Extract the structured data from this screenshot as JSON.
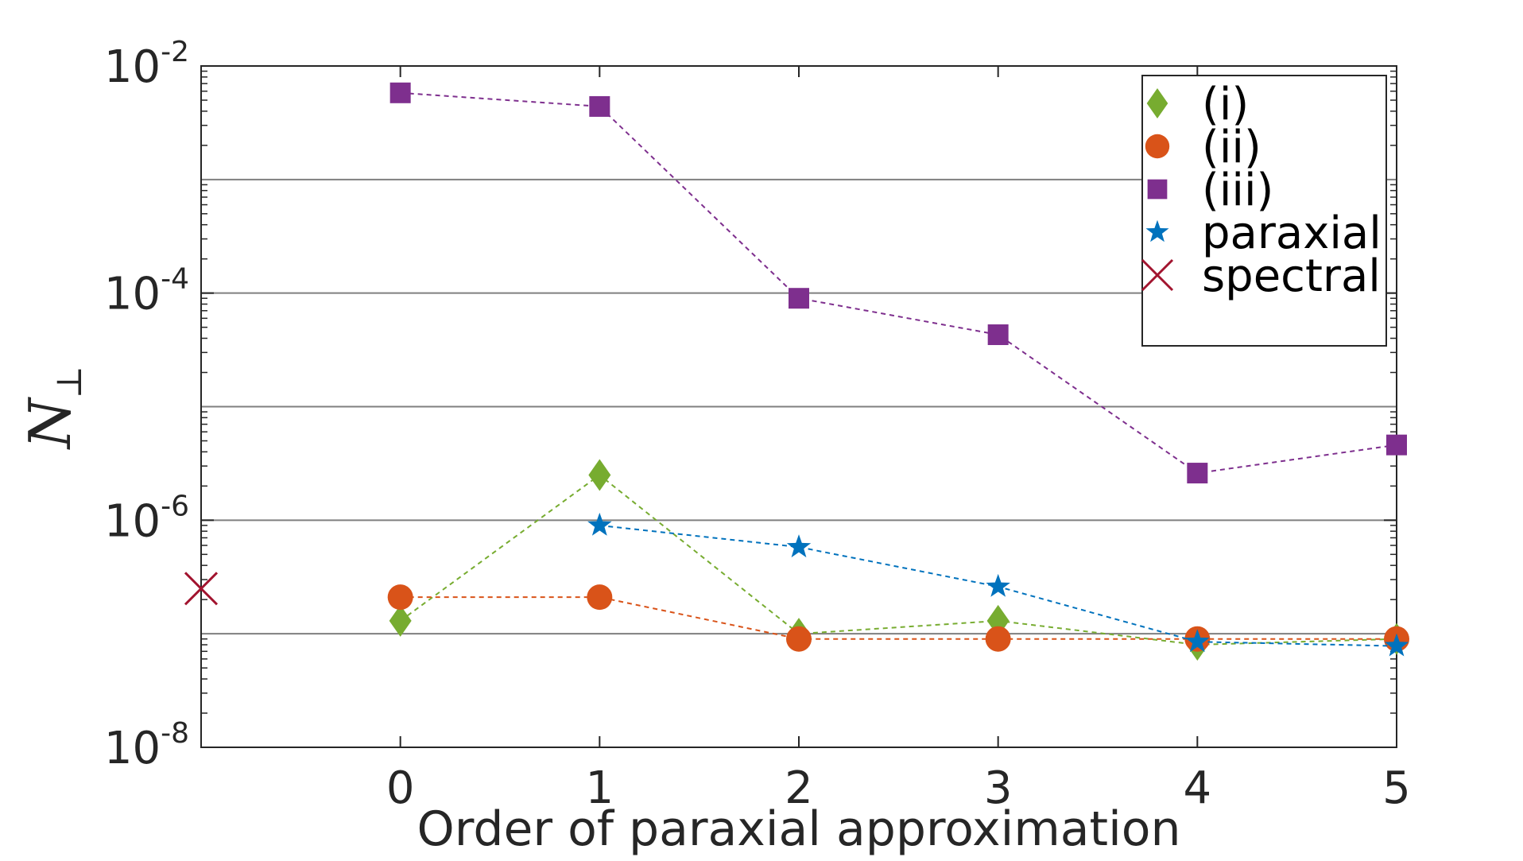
{
  "chart_data": {
    "type": "line",
    "xlabel": "Order of paraxial approximation",
    "ylabel": "N",
    "ylabel_subscript": "⊥",
    "y_scale": "log",
    "ylim": [
      1e-08,
      0.01
    ],
    "xlim": [
      -1,
      5
    ],
    "x_ticks": [
      0,
      1,
      2,
      3,
      4,
      5
    ],
    "x_tick_labels": [
      "0",
      "1",
      "2",
      "3",
      "4",
      "5"
    ],
    "y_ticks": [
      {
        "base": "10",
        "exp": "-8",
        "value": 1e-08
      },
      {
        "base": "10",
        "exp": "-6",
        "value": 1e-06
      },
      {
        "base": "10",
        "exp": "-4",
        "value": 0.0001
      },
      {
        "base": "10",
        "exp": "-2",
        "value": 0.01
      }
    ],
    "grid_y": [
      1e-07,
      1e-06,
      1e-05,
      0.0001,
      0.001
    ],
    "legend_position": "top-right",
    "series": [
      {
        "name": "(i)",
        "marker": "diamond",
        "color": "#77AC30",
        "x": [
          0,
          1,
          2,
          3,
          4,
          5
        ],
        "values": [
          1.3e-07,
          2.5e-06,
          1e-07,
          1.3e-07,
          8e-08,
          9e-08
        ]
      },
      {
        "name": "(ii)",
        "marker": "circle",
        "color": "#D95319",
        "x": [
          0,
          1,
          2,
          3,
          4,
          5
        ],
        "values": [
          2.1e-07,
          2.1e-07,
          9e-08,
          9e-08,
          9e-08,
          9e-08
        ]
      },
      {
        "name": "(iii)",
        "marker": "square",
        "color": "#7E2F8E",
        "x": [
          0,
          1,
          2,
          3,
          4,
          5
        ],
        "values": [
          0.0058,
          0.0044,
          9e-05,
          4.3e-05,
          2.6e-06,
          4.6e-06
        ]
      },
      {
        "name": "paraxial",
        "marker": "star",
        "color": "#0072BD",
        "x": [
          1,
          2,
          3,
          4,
          5
        ],
        "values": [
          9e-07,
          5.8e-07,
          2.6e-07,
          8.5e-08,
          7.8e-08
        ]
      },
      {
        "name": "spectral",
        "marker": "x",
        "color": "#A2142F",
        "x": [
          -1
        ],
        "values": [
          2.5e-07
        ]
      }
    ]
  }
}
